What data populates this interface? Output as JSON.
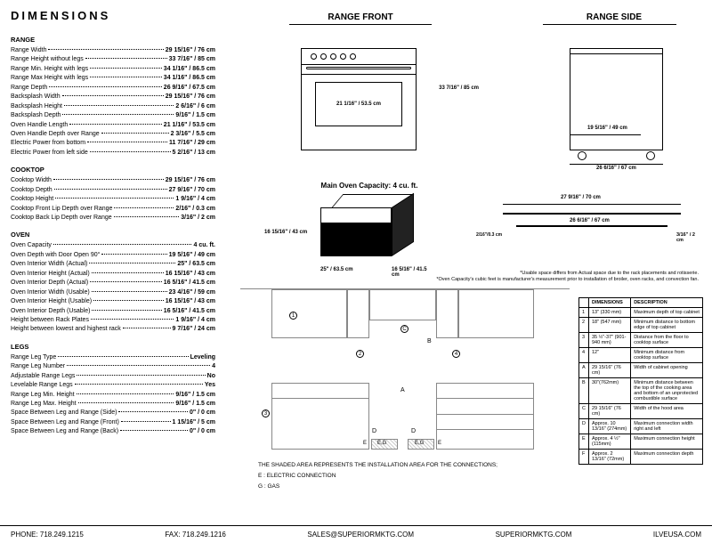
{
  "title": "DIMENSIONS",
  "sections": {
    "range": {
      "header": "RANGE",
      "rows": [
        {
          "label": "Range Width",
          "value": "29 15/16\" / 76 cm"
        },
        {
          "label": "Range Height without legs",
          "value": "33 7/16\" / 85 cm"
        },
        {
          "label": "Range Min. Height with legs",
          "value": "34 1/16\" / 86.5 cm"
        },
        {
          "label": "Range Max Height with legs",
          "value": "34 1/16\" / 86.5 cm"
        },
        {
          "label": "Range Depth",
          "value": "26 9/16\" / 67.5 cm"
        },
        {
          "label": "Backsplash Width",
          "value": "29 15/16\" / 76 cm"
        },
        {
          "label": "Backsplash Height",
          "value": "2 6/16\" / 6 cm"
        },
        {
          "label": "Backsplash Depth",
          "value": "9/16\" / 1.5 cm"
        },
        {
          "label": "Oven Handle Length",
          "value": "21 1/16\" / 53.5 cm"
        },
        {
          "label": "Oven Handle Depth over Range",
          "value": "2 3/16\" / 5.5 cm"
        },
        {
          "label": "Electric Power from bottom",
          "value": "11 7/16\" / 29 cm"
        },
        {
          "label": "Electric Power from left side",
          "value": "5 2/16\" / 13 cm"
        }
      ]
    },
    "cooktop": {
      "header": "COOKTOP",
      "rows": [
        {
          "label": "Cooktop Width",
          "value": "29 15/16\" / 76 cm"
        },
        {
          "label": "Cooktop Depth",
          "value": "27 9/16\" / 70 cm"
        },
        {
          "label": "Cooktop Height",
          "value": "1 9/16\" / 4 cm"
        },
        {
          "label": "Cooktop Front Lip Depth over Range",
          "value": "2/16\" / 0.3 cm"
        },
        {
          "label": "Cooktop Back Lip Depth over Range",
          "value": "3/16\" / 2 cm"
        }
      ]
    },
    "oven": {
      "header": "OVEN",
      "rows": [
        {
          "label": "Oven Capacity",
          "value": "4 cu. ft."
        },
        {
          "label": "Oven Depth with Door Open 90°",
          "value": "19 5/16\" / 49 cm"
        },
        {
          "label": "Oven Interior Width (Actual)",
          "value": "25\" / 63.5 cm"
        },
        {
          "label": "Oven Interior Height (Actual)",
          "value": "16 15/16\" / 43 cm"
        },
        {
          "label": "Oven Interior Depth (Actual)",
          "value": "16 5/16\" / 41.5 cm"
        },
        {
          "label": "Oven Interior Width (Usable)",
          "value": "23 4/16\" / 59 cm"
        },
        {
          "label": "Oven Interior Height (Usable)",
          "value": "16 15/16\" / 43 cm"
        },
        {
          "label": "Oven Interior Depth (Usable)",
          "value": "16 5/16\" / 41.5 cm"
        },
        {
          "label": "Height between Rack Plates",
          "value": "1 9/16\" / 4 cm"
        },
        {
          "label": "Height between lowest and highest rack",
          "value": "9 7/16\" / 24 cm"
        }
      ]
    },
    "legs": {
      "header": "LEGS",
      "rows": [
        {
          "label": "Range Leg Type",
          "value": "Leveling"
        },
        {
          "label": "Range Leg Number",
          "value": "4"
        },
        {
          "label": "Adjustable Range Legs",
          "value": "No"
        },
        {
          "label": "Levelable Range Legs",
          "value": "Yes"
        },
        {
          "label": "Range Leg Min. Height",
          "value": "9/16\" / 1.5 cm"
        },
        {
          "label": "Range Leg Max. Height",
          "value": "9/16\" / 1.5 cm"
        },
        {
          "label": "Space Between Leg and Range (Side)",
          "value": "0\" / 0 cm"
        },
        {
          "label": "Space Between Leg and Range (Front)",
          "value": "1 15/16\" / 5 cm"
        },
        {
          "label": "Space Between Leg and Range (Back)",
          "value": "0\" / 0 cm"
        }
      ]
    }
  },
  "diagrams": {
    "front": {
      "title": "RANGE FRONT",
      "height_label": "33 7/16\" / 85 cm",
      "window_label": "21 1/16\" / 53.5 cm"
    },
    "side": {
      "title": "RANGE SIDE",
      "depth_top": "19 5/16\" / 49 cm",
      "depth_bottom": "26 6/16\" / 67 cm"
    },
    "capacity": {
      "title": "Main Oven Capacity: 4 cu. ft.",
      "h": "16 15/16\" / 43 cm",
      "w": "25\" / 63.5 cm",
      "d": "16 5/16\" / 41.5 cm"
    },
    "plan": {
      "top": "27 9/16\" / 70 cm",
      "mid": "26 6/16\" / 67 cm",
      "left": "2/16\"/0.3 cm",
      "right": "3/16\" / 2 cm"
    }
  },
  "install": {
    "shaded_text": "THE SHADED AREA REPRESENTS THE INSTALLATION AREA FOR THE CONNECTIONS;",
    "e_label": "E : ELECTRIC CONNECTION",
    "g_label": "G : GAS"
  },
  "dim_table": {
    "headers": [
      "",
      "DIMENSIONS",
      "DESCRIPTION"
    ],
    "rows": [
      [
        "1",
        "13\" (330 mm)",
        "Maximum depth of top cabinet"
      ],
      [
        "2",
        "18\" (547 mm)",
        "Minimum distance to bottom edge of top cabinet"
      ],
      [
        "3",
        "35 ½\"-37\" (901-940 mm)",
        "Distance from the floor to cooktop surface"
      ],
      [
        "4",
        "12\"",
        "Minimum distance from cooktop surface"
      ],
      [
        "A",
        "29 15/16\" (76 cm)",
        "Width of cabinet opening"
      ],
      [
        "B",
        "30\"(762mm)",
        "Minimum distance between the top of the cooking area and bottom of an unprotected combustible surface"
      ],
      [
        "C",
        "29 15/16\" (76 cm)",
        "Width of the hood area"
      ],
      [
        "D",
        "Approx. 10 13/16\" (274mm)",
        "Maximum connection width right and left"
      ],
      [
        "E",
        "Approx. 4 ½\" (115mm)",
        "Maximum connection height"
      ],
      [
        "F",
        "Approx. 2 13/16\" (72mm)",
        "Maximum connection depth"
      ]
    ]
  },
  "footnotes": {
    "line1": "*Usable space differs from Actual space due to the rack placements and rotisserie.",
    "line2": "*Oven Capacity's cubic feet is manufacturer's measurement prior to installation of broiler, oven racks, and convection fan."
  },
  "footer": {
    "phone": "PHONE: 718.249.1215",
    "fax": "FAX: 718.249.1216",
    "email": "SALES@SUPERIORMKTG.COM",
    "web1": "SUPERIORMKTG.COM",
    "web2": "ILVEUSA.COM"
  }
}
